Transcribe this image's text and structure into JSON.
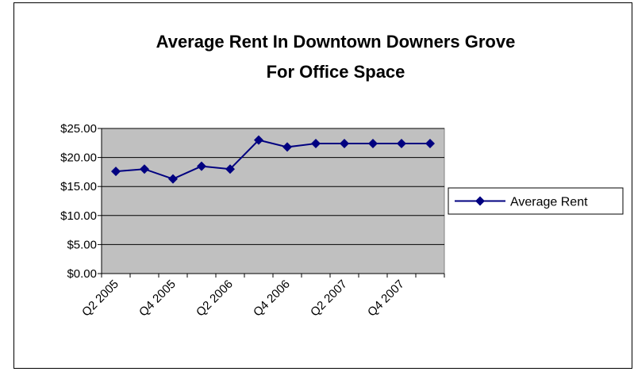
{
  "chart_data": {
    "type": "line",
    "title": [
      "Average Rent In Downtown Downers Grove",
      "For Office Space"
    ],
    "categories": [
      "Q2 2005",
      null,
      "Q4 2005",
      null,
      "Q2 2006",
      null,
      "Q4 2006",
      null,
      "Q2 2007",
      null,
      "Q4 2007",
      null
    ],
    "series": [
      {
        "name": "Average Rent",
        "color": "#000080",
        "values": [
          17.6,
          18.0,
          16.3,
          18.5,
          18.0,
          23.0,
          21.8,
          22.4,
          22.4,
          22.4,
          22.4,
          22.4
        ]
      }
    ],
    "ylim": [
      0,
      25
    ],
    "yticks": [
      {
        "value": 0,
        "label": "$0.00"
      },
      {
        "value": 5,
        "label": "$5.00"
      },
      {
        "value": 10,
        "label": "$10.00"
      },
      {
        "value": 15,
        "label": "$15.00"
      },
      {
        "value": 20,
        "label": "$20.00"
      },
      {
        "value": 25,
        "label": "$25.00"
      }
    ],
    "grid": true,
    "legend": "right"
  }
}
